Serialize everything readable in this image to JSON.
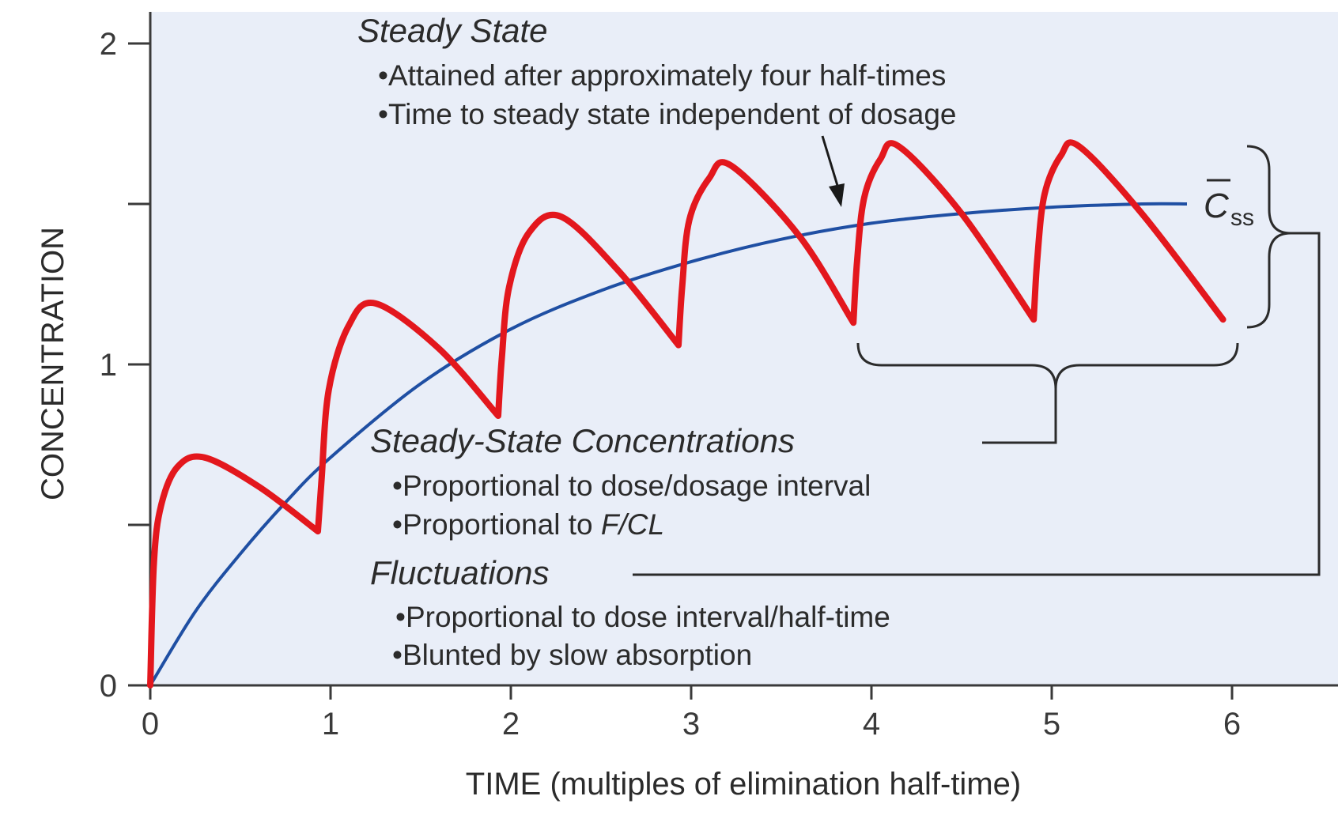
{
  "chart_data": {
    "type": "line",
    "xlabel": "TIME (multiples of elimination half-time)",
    "ylabel": "CONCENTRATION",
    "xlim": [
      0,
      6.5
    ],
    "ylim": [
      0,
      2.1
    ],
    "x_ticks": [
      "0",
      "1",
      "2",
      "3",
      "4",
      "5",
      "6"
    ],
    "y_ticks": [
      "0",
      "1",
      "2"
    ],
    "grid": false,
    "colors": {
      "background": "#e9eef8",
      "average": "#1f4fa3",
      "dosing": "#e3171d",
      "axis": "#3a3a3a"
    },
    "series": [
      {
        "x": [
          0,
          0.25,
          0.5,
          0.75,
          1.0,
          1.5,
          2.0,
          2.5,
          3.0,
          3.5,
          4.0,
          4.5,
          5.0,
          5.5,
          5.75
        ],
        "values": [
          0,
          0.23,
          0.41,
          0.57,
          0.71,
          0.94,
          1.11,
          1.23,
          1.32,
          1.39,
          1.44,
          1.47,
          1.49,
          1.5,
          1.5
        ]
      },
      {
        "x": [
          0,
          0.02,
          0.06,
          0.15,
          0.3,
          0.6,
          0.93,
          0.95,
          0.99,
          1.1,
          1.25,
          1.6,
          1.93,
          1.95,
          1.99,
          2.1,
          2.28,
          2.6,
          2.93,
          2.95,
          2.99,
          3.1,
          3.22,
          3.6,
          3.9,
          3.92,
          3.96,
          4.05,
          4.15,
          4.5,
          4.9,
          4.92,
          4.96,
          5.05,
          5.15,
          5.5,
          5.95
        ],
        "values": [
          0,
          0.38,
          0.56,
          0.68,
          0.71,
          0.62,
          0.48,
          0.64,
          0.92,
          1.12,
          1.19,
          1.05,
          0.84,
          1.02,
          1.24,
          1.41,
          1.46,
          1.29,
          1.06,
          1.24,
          1.45,
          1.58,
          1.62,
          1.4,
          1.13,
          1.32,
          1.52,
          1.64,
          1.68,
          1.47,
          1.14,
          1.33,
          1.53,
          1.65,
          1.68,
          1.47,
          1.14
        ]
      }
    ],
    "css_label": "C",
    "css_subscript": "ss",
    "annotations": {
      "steady_state": {
        "title": "Steady State",
        "bullets": [
          "•Attained after approximately four half-times",
          "•Time to steady state independent of dosage"
        ]
      },
      "ss_concentrations": {
        "title": "Steady-State Concentrations",
        "bullets": [
          "•Proportional to dose/dosage interval",
          "•Proportional to "
        ],
        "italic_suffix": "F/CL"
      },
      "fluctuations": {
        "title": "Fluctuations",
        "bullets": [
          "•Proportional to dose interval/half-time",
          "•Blunted by slow absorption"
        ]
      }
    }
  }
}
